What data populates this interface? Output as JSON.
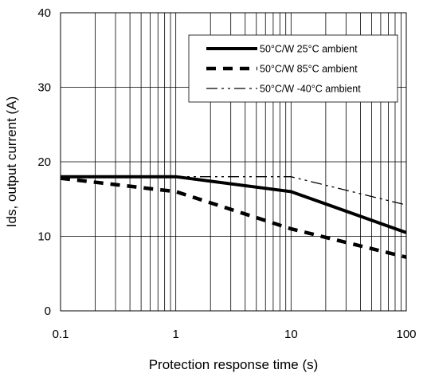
{
  "chart_data": {
    "type": "line",
    "xlabel": "Protection response time (s)",
    "ylabel": "Ids, output current (A)",
    "x_scale": "log",
    "xlim": [
      0.1,
      100
    ],
    "ylim": [
      0,
      40
    ],
    "x_ticks": [
      "0.1",
      "1",
      "10",
      "100"
    ],
    "y_ticks": [
      "0",
      "10",
      "20",
      "30",
      "40"
    ],
    "grid": "x minor and major (log decades), y major",
    "legend_position": "top-right",
    "series": [
      {
        "name": "50°C/W 25°C ambient",
        "style": "solid-thick",
        "color": "#000000",
        "x": [
          0.1,
          1,
          10,
          100
        ],
        "y": [
          18,
          18,
          16,
          10.5
        ]
      },
      {
        "name": "50°C/W 85°C ambient",
        "style": "dashed-thick",
        "color": "#000000",
        "x": [
          0.1,
          1,
          10,
          100
        ],
        "y": [
          17.8,
          16,
          11,
          7.2
        ]
      },
      {
        "name": "50°C/W -40°C ambient",
        "style": "dash-dot-thin",
        "color": "#000000",
        "x": [
          0.1,
          1,
          10,
          100
        ],
        "y": [
          18,
          18,
          18,
          14.2
        ]
      }
    ]
  }
}
